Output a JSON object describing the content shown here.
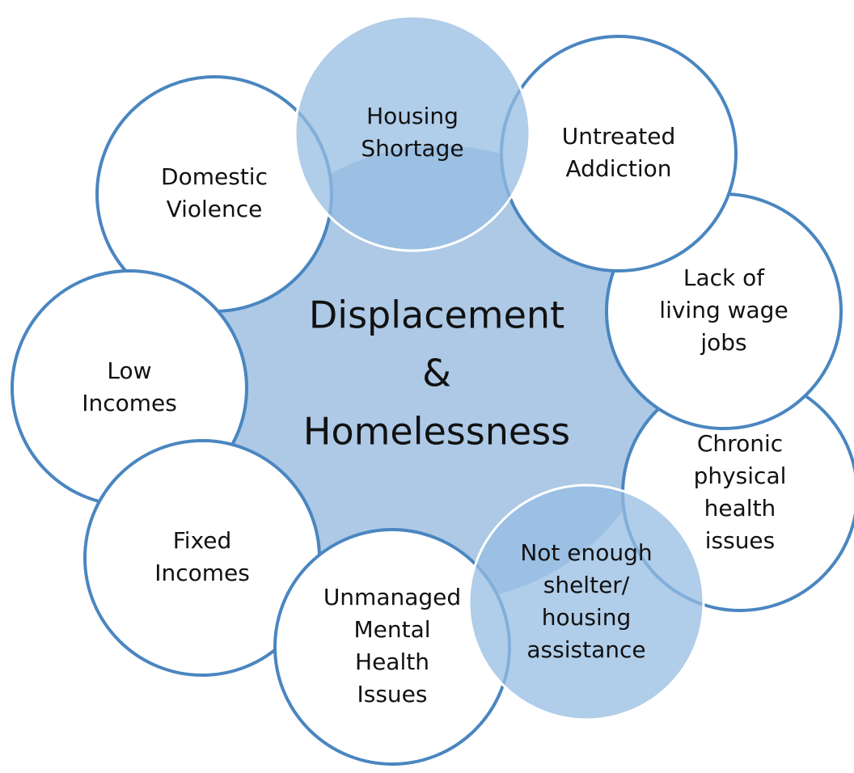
{
  "center": {
    "lines": [
      "Displacement",
      "&",
      "Homelessness"
    ]
  },
  "nodes": [
    {
      "lines": [
        "Domestic",
        "Violence"
      ]
    },
    {
      "lines": [
        "Low",
        "Incomes"
      ]
    },
    {
      "lines": [
        "Fixed",
        "Incomes"
      ]
    },
    {
      "lines": [
        "Unmanaged",
        "Mental",
        "Health",
        "Issues"
      ]
    },
    {
      "lines": [
        "Chronic",
        "physical",
        "health",
        "issues"
      ]
    },
    {
      "lines": [
        "Lack of",
        "living wage",
        "jobs"
      ]
    },
    {
      "lines": [
        "Untreated",
        "Addiction"
      ]
    },
    {
      "lines": [
        "Not enough",
        "shelter/",
        "housing",
        "assistance"
      ]
    },
    {
      "lines": [
        "Housing",
        "Shortage"
      ]
    }
  ]
}
